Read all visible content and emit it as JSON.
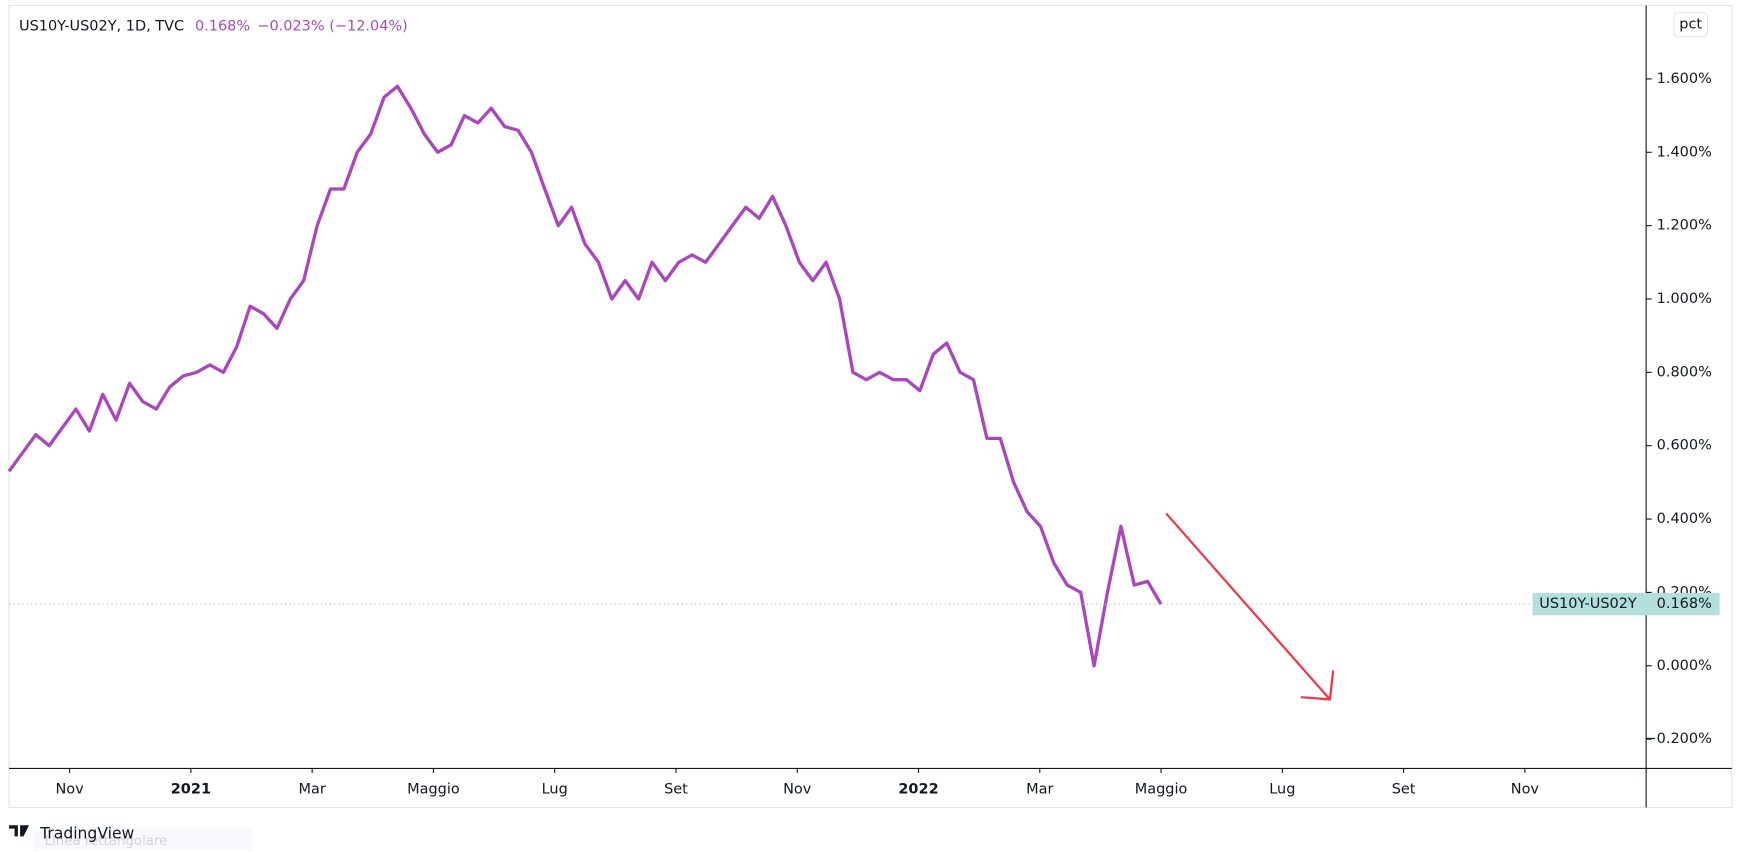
{
  "chart_data": {
    "type": "line",
    "header": {
      "symbol": "US10Y-US02Y, 1D, TVC",
      "last": "0.168%",
      "change": "−0.023% (−12.04%)"
    },
    "scale_button": "pct",
    "brand": "TradingView",
    "faded_note": "Linea rettangolare",
    "xlim": [
      "2020-10",
      "2023-01"
    ],
    "xticks": [
      {
        "value": "2020-11",
        "label": "Nov"
      },
      {
        "value": "2021-01",
        "label": "2021"
      },
      {
        "value": "2021-03",
        "label": "Mar"
      },
      {
        "value": "2021-05",
        "label": "Maggio"
      },
      {
        "value": "2021-07",
        "label": "Lug"
      },
      {
        "value": "2021-09",
        "label": "Set"
      },
      {
        "value": "2021-11",
        "label": "Nov"
      },
      {
        "value": "2022-01",
        "label": "2022"
      },
      {
        "value": "2022-03",
        "label": "Mar"
      },
      {
        "value": "2022-05",
        "label": "Maggio"
      },
      {
        "value": "2022-07",
        "label": "Lug"
      },
      {
        "value": "2022-09",
        "label": "Set"
      },
      {
        "value": "2022-11",
        "label": "Nov"
      }
    ],
    "ylim": [
      -0.28,
      1.8
    ],
    "yticks": [
      {
        "value": -0.2,
        "label": "−0.200%"
      },
      {
        "value": 0,
        "label": "0.000%"
      },
      {
        "value": 0.2,
        "label": "0.200%"
      },
      {
        "value": 0.4,
        "label": "0.400%"
      },
      {
        "value": 0.6,
        "label": "0.600%"
      },
      {
        "value": 0.8,
        "label": "0.800%"
      },
      {
        "value": 1.0,
        "label": "1.000%"
      },
      {
        "value": 1.2,
        "label": "1.200%"
      },
      {
        "value": 1.4,
        "label": "1.400%"
      },
      {
        "value": 1.6,
        "label": "1.600%"
      }
    ],
    "series": [
      {
        "name": "US10Y-US02Y",
        "color": "#ab47bc",
        "span": [
          "2020-10",
          "2022-05"
        ],
        "values": [
          0.53,
          0.58,
          0.63,
          0.6,
          0.65,
          0.7,
          0.64,
          0.74,
          0.67,
          0.77,
          0.72,
          0.7,
          0.76,
          0.79,
          0.8,
          0.82,
          0.8,
          0.87,
          0.98,
          0.96,
          0.92,
          1.0,
          1.05,
          1.2,
          1.3,
          1.3,
          1.4,
          1.45,
          1.55,
          1.58,
          1.52,
          1.45,
          1.4,
          1.42,
          1.5,
          1.48,
          1.52,
          1.47,
          1.46,
          1.4,
          1.3,
          1.2,
          1.25,
          1.15,
          1.1,
          1.0,
          1.05,
          1.0,
          1.1,
          1.05,
          1.1,
          1.12,
          1.1,
          1.15,
          1.2,
          1.25,
          1.22,
          1.28,
          1.2,
          1.1,
          1.05,
          1.1,
          1.0,
          0.8,
          0.78,
          0.8,
          0.78,
          0.78,
          0.75,
          0.85,
          0.88,
          0.8,
          0.78,
          0.62,
          0.62,
          0.5,
          0.42,
          0.38,
          0.28,
          0.22,
          0.2,
          0.0,
          0.2,
          0.38,
          0.22,
          0.23,
          0.168
        ]
      }
    ]
  }
}
